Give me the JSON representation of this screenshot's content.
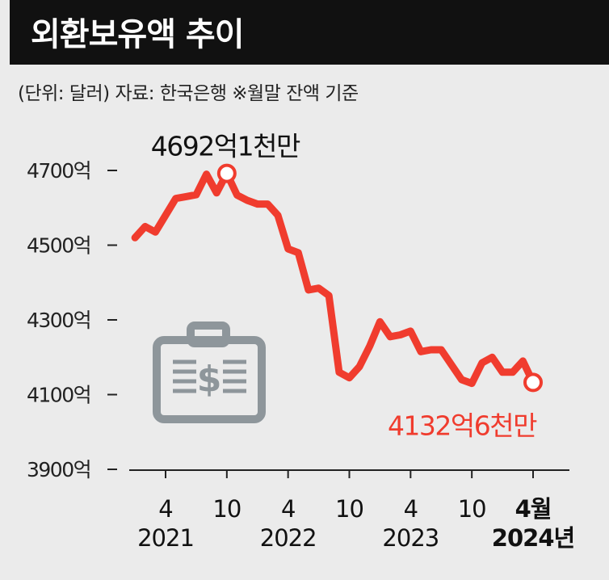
{
  "header": {
    "title": "외환보유액 추이"
  },
  "note": "(단위: 달러)  자료: 한국은행  ※월말 잔액 기준",
  "colors": {
    "line": "#f03c2e",
    "title_bg": "#111111",
    "panel_bg": "#ebebeb",
    "icon": "#8e969b"
  },
  "icon": "money-briefcase-icon",
  "chart_data": {
    "type": "line",
    "title": "외환보유액 추이",
    "ylim": [
      3900,
      4800
    ],
    "yticks": [
      {
        "value": 4700,
        "label": "4700억"
      },
      {
        "value": 4500,
        "label": "4500억"
      },
      {
        "value": 4300,
        "label": "4300억"
      },
      {
        "value": 4100,
        "label": "4100억"
      },
      {
        "value": 3900,
        "label": "3900억"
      }
    ],
    "xticks": [
      {
        "month": "4",
        "year": "2021",
        "bold": false
      },
      {
        "month": "10",
        "year": "",
        "bold": false
      },
      {
        "month": "4",
        "year": "2022",
        "bold": false
      },
      {
        "month": "10",
        "year": "",
        "bold": false
      },
      {
        "month": "4",
        "year": "2023",
        "bold": false
      },
      {
        "month": "10",
        "year": "",
        "bold": false
      },
      {
        "month": "4월",
        "year": "2024년",
        "bold": true
      }
    ],
    "series": [
      {
        "x": [
          "2021-01",
          "2021-02",
          "2021-03",
          "2021-04",
          "2021-05",
          "2021-06",
          "2021-07",
          "2021-08",
          "2021-09",
          "2021-10",
          "2021-11",
          "2021-12",
          "2022-01",
          "2022-02",
          "2022-03",
          "2022-04",
          "2022-05",
          "2022-06",
          "2022-07",
          "2022-08",
          "2022-09",
          "2022-10",
          "2022-11",
          "2022-12",
          "2023-01",
          "2023-02",
          "2023-03",
          "2023-04",
          "2023-05",
          "2023-06",
          "2023-07",
          "2023-08",
          "2023-09",
          "2023-10",
          "2023-11",
          "2023-12",
          "2024-01",
          "2024-02",
          "2024-03",
          "2024-04"
        ],
        "values": [
          4520,
          4550,
          4535,
          4580,
          4625,
          4630,
          4635,
          4690,
          4640,
          4692.1,
          4634,
          4620,
          4610,
          4610,
          4580,
          4490,
          4480,
          4380,
          4385,
          4365,
          4160,
          4145,
          4175,
          4230,
          4295,
          4255,
          4260,
          4270,
          4215,
          4220,
          4220,
          4180,
          4140,
          4130,
          4185,
          4200,
          4160,
          4160,
          4190,
          4132.6
        ]
      }
    ],
    "annotations": [
      {
        "x": "2021-10",
        "value": 4692.1,
        "label": "4692억1천만"
      },
      {
        "x": "2024-04",
        "value": 4132.6,
        "label": "4132억6천만"
      }
    ]
  }
}
